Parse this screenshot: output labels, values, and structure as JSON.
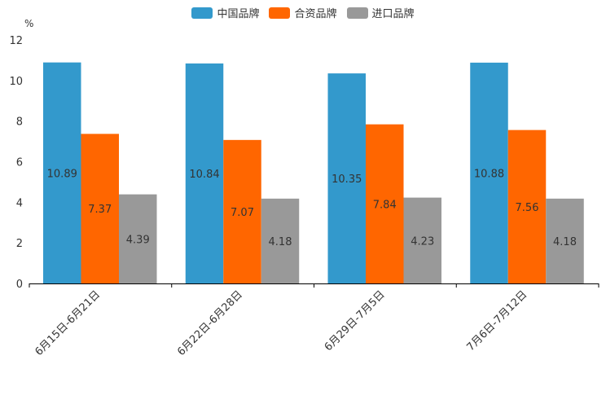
{
  "chart_data": {
    "type": "bar",
    "title": "",
    "xlabel": "",
    "ylabel": "%",
    "ylim": [
      0,
      12
    ],
    "yticks": [
      "0",
      "2",
      "4",
      "6",
      "8",
      "10",
      "12"
    ],
    "categories": [
      "6月15日-6月21日",
      "6月22日-6月28日",
      "6月29日-7月5日",
      "7月6日-7月12日"
    ],
    "series": [
      {
        "name": "中国品牌",
        "color": "#3399cc",
        "values": [
          10.89,
          10.84,
          10.35,
          10.88
        ],
        "labels": [
          "10.89",
          "10.84",
          "10.35",
          "10.88"
        ]
      },
      {
        "name": "合资品牌",
        "color": "#ff6600",
        "values": [
          7.37,
          7.07,
          7.84,
          7.56
        ],
        "labels": [
          "7.37",
          "7.07",
          "7.84",
          "7.56"
        ]
      },
      {
        "name": "进口品牌",
        "color": "#999999",
        "values": [
          4.39,
          4.18,
          4.23,
          4.18
        ],
        "labels": [
          "4.39",
          "4.18",
          "4.23",
          "4.18"
        ]
      }
    ],
    "legend_position": "top-center",
    "grid": false
  }
}
